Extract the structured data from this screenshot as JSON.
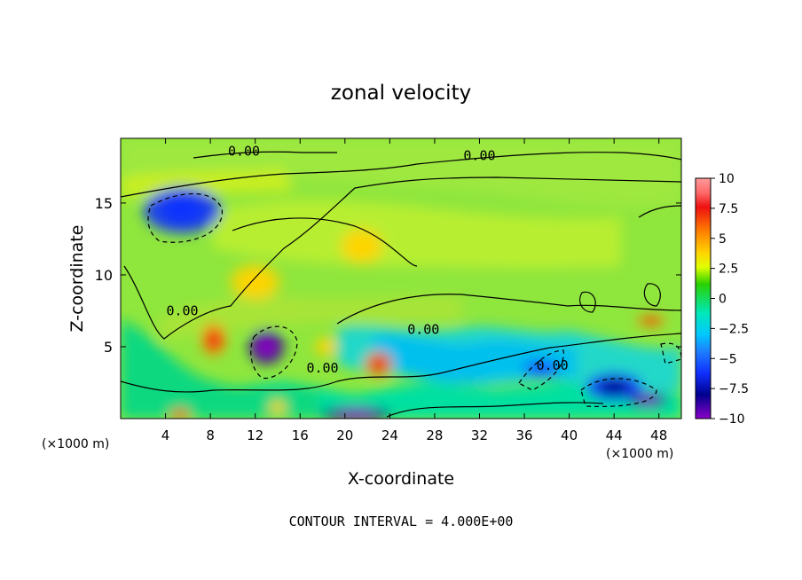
{
  "chart_data": {
    "type": "heatmap",
    "title": "zonal velocity",
    "xlabel": "X-coordinate",
    "ylabel": "Z-coordinate",
    "x_unit_left": "(×1000 m)",
    "x_unit_right": "(×1000 m)",
    "footer": "CONTOUR INTERVAL = 4.000E+00",
    "xlim": [
      0,
      50
    ],
    "ylim": [
      0,
      19.5
    ],
    "xticks": [
      4,
      8,
      12,
      16,
      20,
      24,
      28,
      32,
      36,
      40,
      44,
      48
    ],
    "yticks": [
      5,
      10,
      15
    ],
    "contour_labels": [
      {
        "text": "0.00",
        "x": 11,
        "y": 18.3
      },
      {
        "text": "0.00",
        "x": 32,
        "y": 18.0
      },
      {
        "text": "0.00",
        "x": 5.5,
        "y": 7.2
      },
      {
        "text": "0.00",
        "x": 27,
        "y": 5.9
      },
      {
        "text": "0.00",
        "x": 18,
        "y": 3.2
      },
      {
        "text": "0.00",
        "x": 38.5,
        "y": 3.4
      }
    ],
    "colorbar": {
      "ticks": [
        "10",
        "7.5",
        "5",
        "2.5",
        "0",
        "−2.5",
        "−5",
        "−7.5",
        "−10"
      ],
      "range": [
        -10,
        10
      ]
    },
    "features": [
      {
        "x": 5.5,
        "y": 14.5,
        "value": -5
      },
      {
        "x": 12,
        "y": 9.5,
        "value": 5
      },
      {
        "x": 21.5,
        "y": 12,
        "value": 4.5
      },
      {
        "x": 8.3,
        "y": 5.5,
        "value": 6
      },
      {
        "x": 13,
        "y": 5,
        "value": -8
      },
      {
        "x": 23,
        "y": 3.8,
        "value": 6
      },
      {
        "x": 18.3,
        "y": 5.0,
        "value": 5
      },
      {
        "x": 21,
        "y": 0.3,
        "value": -8
      },
      {
        "x": 44,
        "y": 2.2,
        "value": -6
      },
      {
        "x": 47,
        "y": 1.3,
        "value": -7
      },
      {
        "x": 47.3,
        "y": 6.8,
        "value": 6.5
      },
      {
        "x": 37.5,
        "y": 3.5,
        "value": -4.5
      },
      {
        "x": 5.3,
        "y": 0.3,
        "value": 6
      },
      {
        "x": 14,
        "y": 0.8,
        "value": 5
      }
    ]
  }
}
